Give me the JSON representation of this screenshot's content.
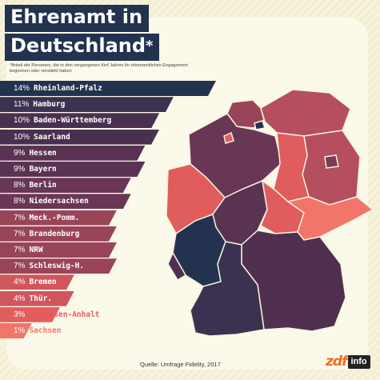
{
  "title_lines": [
    "Ehrenamt in",
    "Deutschland"
  ],
  "title_asterisk": "*",
  "footnote": "*Anteil der Personen, die in den vergangenen fünf Jahren ihr ehrenamtliches Engagement begonnen oder verstärkt haben",
  "source": "Quelle: Umfrage Fidelity, 2017",
  "logo": {
    "zdf": "zdf",
    "info": "info"
  },
  "colors": {
    "dark": "#23324f",
    "plum": "#4f3050",
    "mauve": "#7a3d58",
    "rose": "#b54e5e",
    "coral": "#e15c5c",
    "salmon": "#f2756a"
  },
  "chart_data": {
    "type": "bar",
    "orientation": "horizontal",
    "unit": "%",
    "categories": [
      "Rheinland-Pfalz",
      "Hamburg",
      "Baden-Württemberg",
      "Saarland",
      "Hessen",
      "Bayern",
      "Berlin",
      "Niedersachsen",
      "Meck.-Pomm.",
      "Brandenburg",
      "NRW",
      "Schleswig-H.",
      "Bremen",
      "Thür.",
      "Sachsen-Anhalt",
      "Sachsen"
    ],
    "values": [
      14,
      11,
      10,
      10,
      9,
      9,
      8,
      8,
      7,
      7,
      7,
      7,
      4,
      4,
      3,
      1
    ],
    "labels": [
      "14%",
      "11%",
      "10%",
      "10%",
      "9%",
      "9%",
      "8%",
      "8%",
      "7%",
      "7%",
      "7%",
      "7%",
      "4%",
      "4%",
      "3%",
      "1%"
    ],
    "bar_colors": [
      "#23324f",
      "#3b3150",
      "#4a3050",
      "#4a3050",
      "#5a3353",
      "#5a3353",
      "#6a3655",
      "#6a3655",
      "#9a4458",
      "#9a4458",
      "#9a4458",
      "#9a4458",
      "#d0565d",
      "#d0565d",
      "#e45d5d",
      "#f2756a"
    ]
  }
}
